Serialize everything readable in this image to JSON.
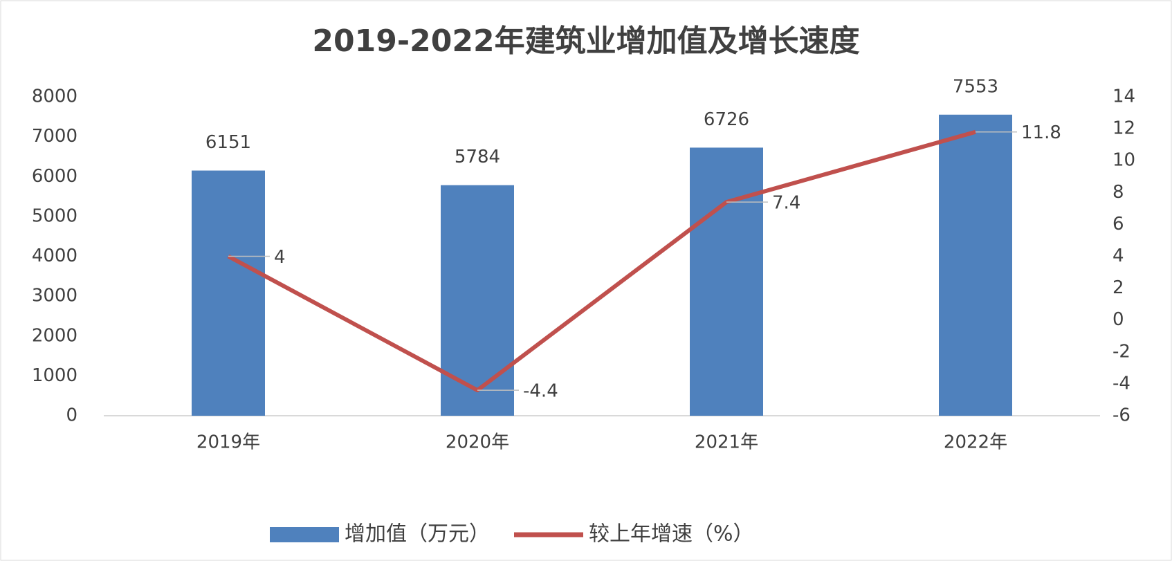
{
  "chart_data": {
    "type": "combo",
    "title": "2019-2022年建筑业增加值及增长速度",
    "categories": [
      "2019年",
      "2020年",
      "2021年",
      "2022年"
    ],
    "series": [
      {
        "name": "增加值（万元）",
        "type": "bar",
        "color": "#4f81bd",
        "values": [
          6151,
          5784,
          6726,
          7553
        ]
      },
      {
        "name": "较上年增速（%）",
        "type": "line",
        "axis": "y2",
        "color": "#c0504d",
        "values": [
          4,
          -4.4,
          7.4,
          11.8
        ]
      }
    ],
    "ylim": [
      0,
      8000
    ],
    "yticks": [
      0,
      1000,
      2000,
      3000,
      4000,
      5000,
      6000,
      7000,
      8000
    ],
    "y2lim": [
      -6,
      14
    ],
    "y2ticks": [
      -6,
      -4,
      -2,
      0,
      2,
      4,
      6,
      8,
      10,
      12,
      14
    ],
    "grid": false,
    "legend": "bottom"
  }
}
